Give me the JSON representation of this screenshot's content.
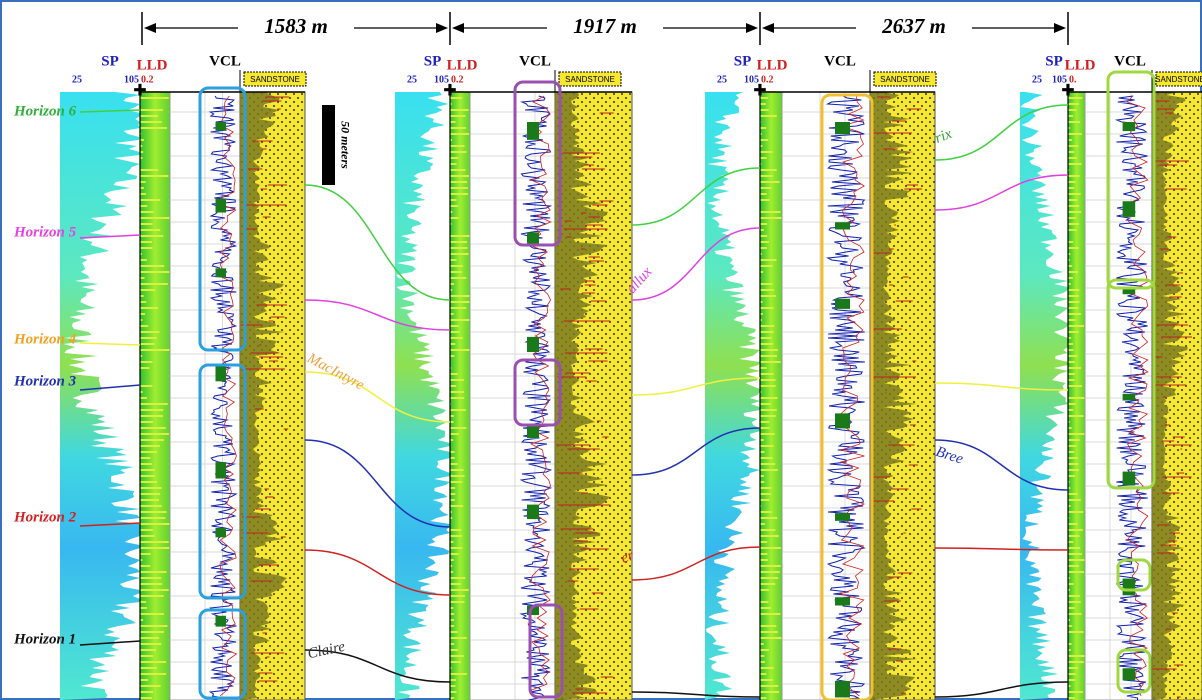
{
  "distances": [
    "1583 m",
    "1917 m",
    "2637 m"
  ],
  "wells": [
    {
      "sp": "SP",
      "lld": "LLD",
      "vcl": "VCL",
      "sp_min": "25",
      "sp_max": "105",
      "lld_min": "0.2",
      "lithology": "SANDSTONE"
    },
    {
      "sp": "SP",
      "lld": "LLD",
      "vcl": "VCL",
      "sp_min": "25",
      "sp_max": "105",
      "lld_min": "0.2",
      "lithology": "SANDSTONE"
    },
    {
      "sp": "SP",
      "lld": "LLD",
      "vcl": "VCL",
      "sp_min": "25",
      "sp_max": "105",
      "lld_min": "0.2",
      "lithology": "SANDSTONE"
    },
    {
      "sp": "SP",
      "lld": "LLD",
      "vcl": "VCL",
      "sp_min": "25",
      "sp_max": "105",
      "lld_min": "0.",
      "lithology": "SANDSTONE"
    }
  ],
  "scale_bar": "50 meters",
  "horizons": [
    {
      "label": "Horizon 6",
      "color": "#2fae3a"
    },
    {
      "label": "Horizon 5",
      "color": "#e83fe0"
    },
    {
      "label": "Horizon 4",
      "color": "#f0a020"
    },
    {
      "label": "Horizon 3",
      "color": "#1f2fb0"
    },
    {
      "label": "Horizon 2",
      "color": "#d42020"
    },
    {
      "label": "Horizon 1",
      "color": "#111111"
    }
  ],
  "formations": [
    "MacIntyre",
    "Claire",
    "allux",
    "Bree",
    "rix",
    "er"
  ]
}
